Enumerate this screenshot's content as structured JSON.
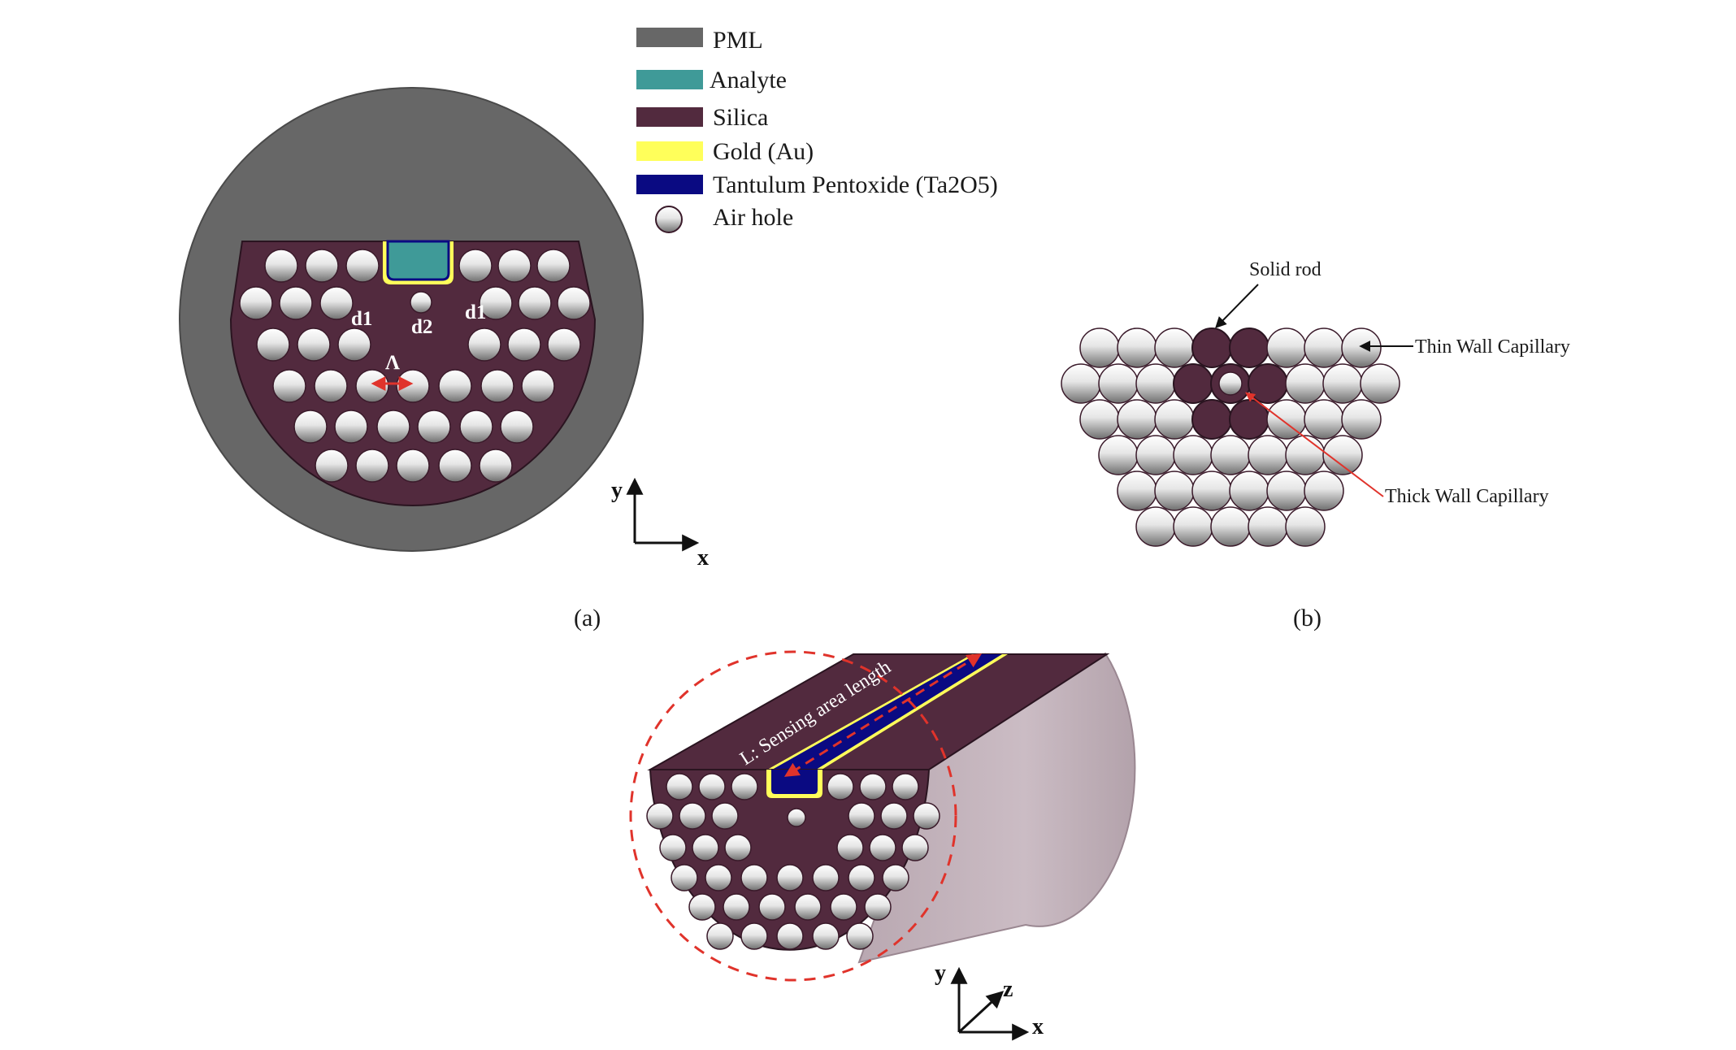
{
  "legend": {
    "items": [
      {
        "label": "PML",
        "color": "#676767",
        "kind": "swatch"
      },
      {
        "label": "Analyte",
        "color": "#3f9a98",
        "kind": "swatch"
      },
      {
        "label": "Silica",
        "color": "#522a3e",
        "kind": "swatch"
      },
      {
        "label": "Gold (Au)",
        "color": "#ffff5a",
        "kind": "swatch"
      },
      {
        "label": "Tantulum Pentoxide (Ta2O5)",
        "color": "#0a0a82",
        "kind": "swatch"
      },
      {
        "label": "Air hole",
        "color": "#ffffff",
        "kind": "circle"
      }
    ]
  },
  "panel_a": {
    "caption": "(a)",
    "labels": {
      "d1_left": "d1",
      "d2": "d2",
      "d1_right": "d1",
      "lambda": "Λ"
    },
    "axes": {
      "y": "y",
      "x": "x"
    }
  },
  "panel_b": {
    "caption": "(b)",
    "annotations": {
      "solid_rod": "Solid rod",
      "thin_wall": "Thin Wall Capillary",
      "thick_wall": "Thick Wall Capillary"
    }
  },
  "panel_c": {
    "sensing_label": "L: Sensing area length",
    "axes": {
      "y": "y",
      "z": "z",
      "x": "x"
    }
  },
  "colors": {
    "pml": "#676767",
    "silica": "#522a3e",
    "analyte": "#3f9a98",
    "gold": "#ffff5a",
    "ta2o5": "#0a0a82",
    "fiber_side": "#c5b4bd",
    "arrow_red": "#e0332b"
  }
}
